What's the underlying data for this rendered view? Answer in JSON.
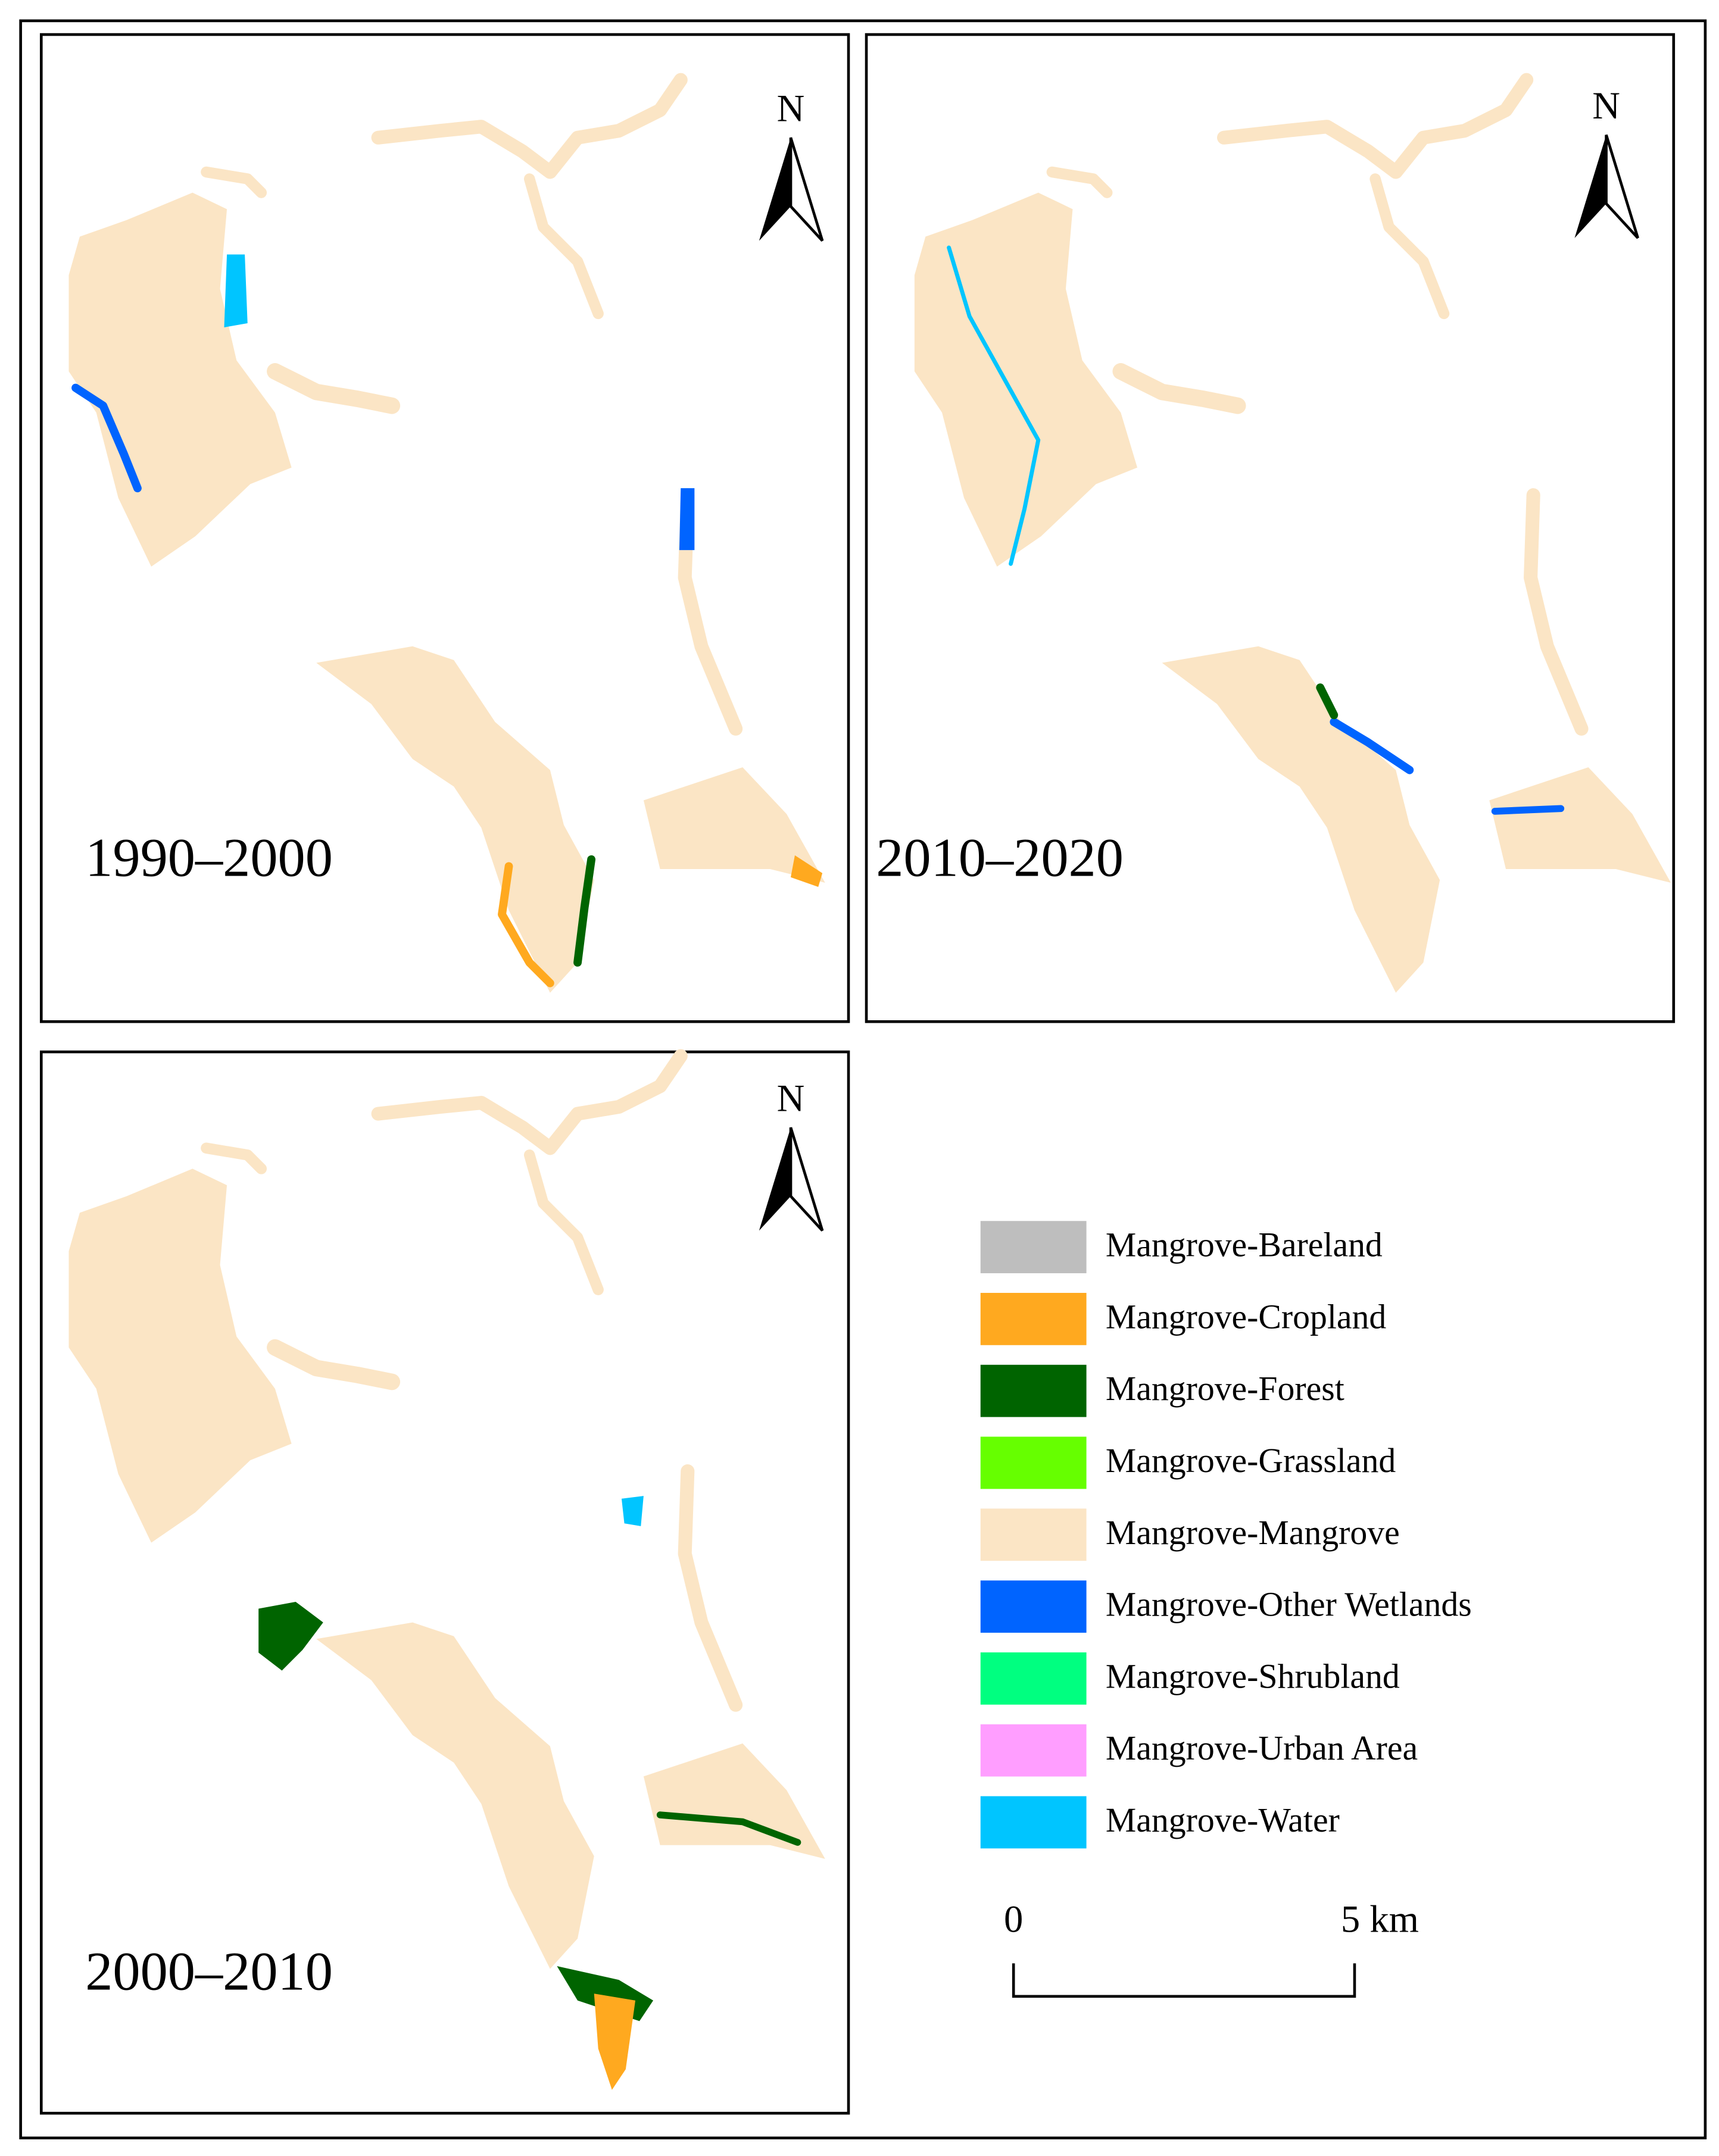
{
  "panels": [
    {
      "label": "1990–2000"
    },
    {
      "label": "2010–2020"
    },
    {
      "label": "2000–2010"
    }
  ],
  "north_arrow": "N",
  "legend": [
    {
      "label": "Mangrove-Bareland",
      "color": "#BEBEBE"
    },
    {
      "label": "Mangrove-Cropland",
      "color": "#FFA91F"
    },
    {
      "label": "Mangrove-Forest",
      "color": "#006400"
    },
    {
      "label": "Mangrove-Grassland",
      "color": "#66FF00"
    },
    {
      "label": "Mangrove-Mangrove",
      "color": "#FBE5C5"
    },
    {
      "label": "Mangrove-Other Wetlands",
      "color": "#0064FF"
    },
    {
      "label": "Mangrove-Shrubland",
      "color": "#00FF80"
    },
    {
      "label": "Mangrove-Urban Area",
      "color": "#FF9EFF"
    },
    {
      "label": "Mangrove-Water",
      "color": "#00C5FF"
    }
  ],
  "scale_bar": {
    "start": "0",
    "end": "5 km"
  }
}
